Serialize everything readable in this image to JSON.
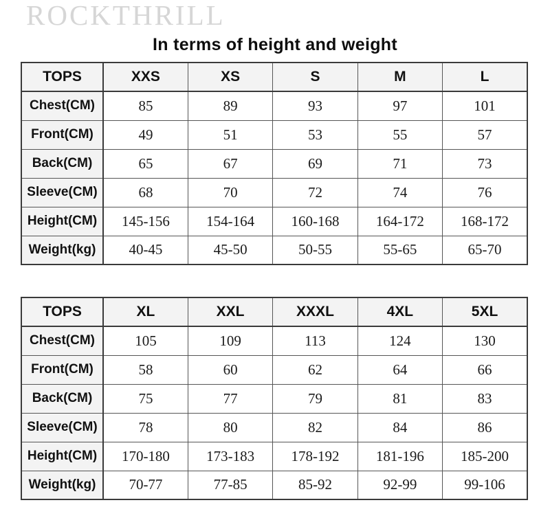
{
  "brand": "ROCKTHRILL",
  "title": "In terms of height and weight",
  "colors": {
    "brand_text": "#d6d6d6",
    "title_text": "#0d0d0d",
    "table_outer_border": "#3a3a3a",
    "table_inner_border": "#555555",
    "header_bg": "#f3f3f3",
    "cell_bg": "#ffffff"
  },
  "chart_data": [
    {
      "type": "table",
      "title": "TOPS size chart (XXS-L)",
      "columns": [
        "TOPS",
        "XXS",
        "XS",
        "S",
        "M",
        "L"
      ],
      "rows": [
        {
          "label": "Chest(CM)",
          "values": [
            "85",
            "89",
            "93",
            "97",
            "101"
          ]
        },
        {
          "label": "Front(CM)",
          "values": [
            "49",
            "51",
            "53",
            "55",
            "57"
          ]
        },
        {
          "label": "Back(CM)",
          "values": [
            "65",
            "67",
            "69",
            "71",
            "73"
          ]
        },
        {
          "label": "Sleeve(CM)",
          "values": [
            "68",
            "70",
            "72",
            "74",
            "76"
          ]
        },
        {
          "label": "Height(CM)",
          "values": [
            "145-156",
            "154-164",
            "160-168",
            "164-172",
            "168-172"
          ]
        },
        {
          "label": "Weight(kg)",
          "values": [
            "40-45",
            "45-50",
            "50-55",
            "55-65",
            "65-70"
          ]
        }
      ]
    },
    {
      "type": "table",
      "title": "TOPS size chart (XL-5XL)",
      "columns": [
        "TOPS",
        "XL",
        "XXL",
        "XXXL",
        "4XL",
        "5XL"
      ],
      "rows": [
        {
          "label": "Chest(CM)",
          "values": [
            "105",
            "109",
            "113",
            "124",
            "130"
          ]
        },
        {
          "label": "Front(CM)",
          "values": [
            "58",
            "60",
            "62",
            "64",
            "66"
          ]
        },
        {
          "label": "Back(CM)",
          "values": [
            "75",
            "77",
            "79",
            "81",
            "83"
          ]
        },
        {
          "label": "Sleeve(CM)",
          "values": [
            "78",
            "80",
            "82",
            "84",
            "86"
          ]
        },
        {
          "label": "Height(CM)",
          "values": [
            "170-180",
            "173-183",
            "178-192",
            "181-196",
            "185-200"
          ]
        },
        {
          "label": "Weight(kg)",
          "values": [
            "70-77",
            "77-85",
            "85-92",
            "92-99",
            "99-106"
          ]
        }
      ]
    }
  ]
}
